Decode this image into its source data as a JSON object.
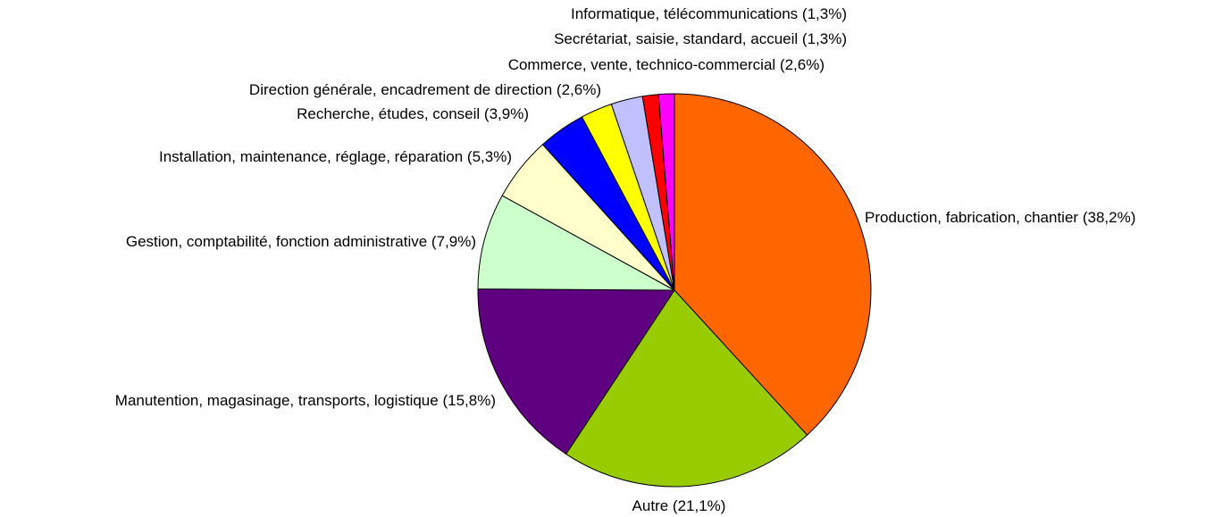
{
  "chart_data": {
    "type": "pie",
    "categories": [
      "Production, fabrication, chantier",
      "Autre",
      "Manutention, magasinage, transports, logistique",
      "Gestion, comptabilité, fonction administrative",
      "Installation, maintenance, réglage, réparation",
      "Recherche, études, conseil",
      "Direction générale, encadrement de direction",
      "Commerce, vente, technico-commercial",
      "Secrétariat, saisie, standard, accueil",
      "Informatique, télécommunications"
    ],
    "values": [
      38.2,
      21.1,
      15.8,
      7.9,
      5.3,
      3.9,
      2.6,
      2.6,
      1.3,
      1.3
    ],
    "value_labels": [
      "(38,2%)",
      "(21,1%)",
      "(15,8%)",
      "(7,9%)",
      "(5,3%)",
      "(3,9%)",
      "(2,6%)",
      "(2,6%)",
      "(1,3%)",
      "(1,3%)"
    ],
    "colors": [
      "#FF6600",
      "#99CC00",
      "#5F0080",
      "#CCFFCC",
      "#FFFFCC",
      "#0000FF",
      "#FFFF00",
      "#C0C0FF",
      "#FF0000",
      "#FF00FF"
    ]
  }
}
